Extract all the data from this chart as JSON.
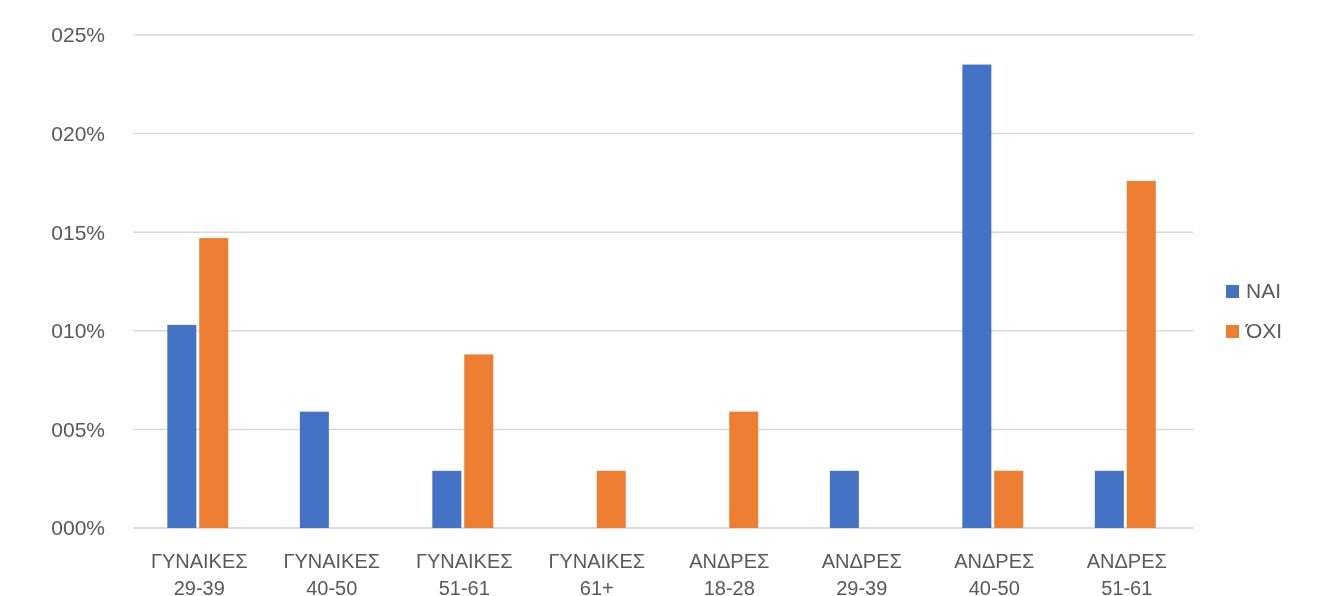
{
  "chart_data": {
    "type": "bar",
    "categories": [
      "ΓΥΝΑΙΚΕΣ\n29-39",
      "ΓΥΝΑΙΚΕΣ\n40-50",
      "ΓΥΝΑΙΚΕΣ\n51-61",
      "ΓΥΝΑΙΚΕΣ\n61+",
      "ΑΝΔΡΕΣ\n18-28",
      "ΑΝΔΡΕΣ\n29-39",
      "ΑΝΔΡΕΣ\n40-50",
      "ΑΝΔΡΕΣ\n51-61"
    ],
    "series": [
      {
        "name": "ΝΑΙ",
        "color": "#4472c4",
        "values": [
          10.3,
          5.9,
          2.9,
          0,
          0,
          2.9,
          23.5,
          2.9
        ]
      },
      {
        "name": "ΌΧΙ",
        "color": "#ed7d31",
        "values": [
          14.7,
          0,
          8.8,
          2.9,
          5.9,
          0,
          2.9,
          17.6
        ]
      }
    ],
    "ylim": [
      0,
      25
    ],
    "yticks": [
      {
        "value": 0,
        "label": "000%"
      },
      {
        "value": 5,
        "label": "005%"
      },
      {
        "value": 10,
        "label": "010%"
      },
      {
        "value": 15,
        "label": "015%"
      },
      {
        "value": 20,
        "label": "020%"
      },
      {
        "value": 25,
        "label": "025%"
      }
    ],
    "grid": "y",
    "legend": "right"
  }
}
